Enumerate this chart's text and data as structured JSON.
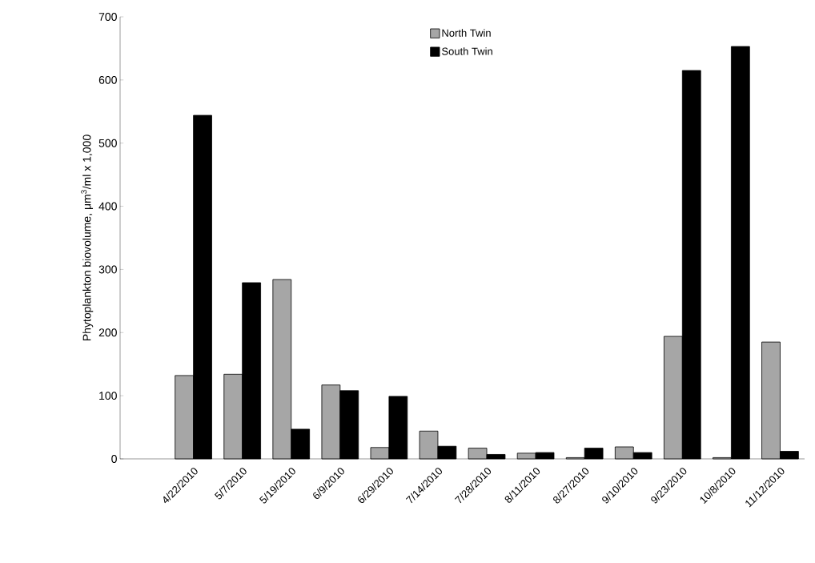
{
  "chart_data": {
    "type": "bar",
    "ylabel": "Phytoplankton biovolume, μm$^{3}$/ml x 1,000",
    "categories": [
      null,
      "4/22/2010",
      "5/7/2010",
      "5/19/2010",
      "6/9/2010",
      "6/29/2010",
      "7/14/2010",
      "7/28/2010",
      "8/11/2010",
      "8/27/2010",
      "9/10/2010",
      "9/23/2010",
      "10/8/2010",
      "11/12/2010"
    ],
    "series": [
      {
        "name": "North Twin",
        "color": "#a6a6a6",
        "values": [
          null,
          132,
          134,
          284,
          117,
          18,
          44,
          17,
          9,
          2,
          19,
          194,
          2,
          185
        ]
      },
      {
        "name": "South Twin",
        "color": "#000000",
        "values": [
          null,
          544,
          279,
          47,
          108,
          99,
          20,
          7,
          10,
          17,
          10,
          615,
          653,
          12
        ]
      }
    ],
    "ylim": [
      0,
      700
    ],
    "yticks": [
      0,
      100,
      200,
      300,
      400,
      500,
      600,
      700
    ],
    "grid": false,
    "legend": "top"
  }
}
